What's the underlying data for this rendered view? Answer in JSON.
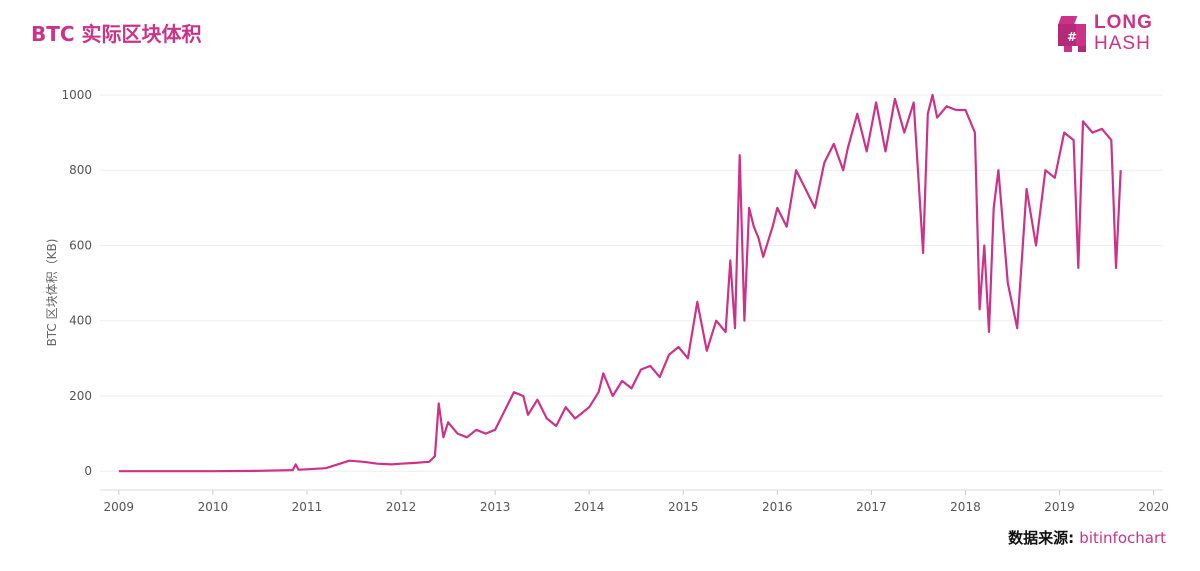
{
  "header": {
    "title": "BTC 实际区块体积"
  },
  "logo": {
    "line1": "LONG",
    "line2": "HASH"
  },
  "footer": {
    "source_label": "数据来源:",
    "source_value": "bitinfochart"
  },
  "colors": {
    "series": "#cc3388",
    "grid": "#eeeeee",
    "axis_text": "#555555"
  },
  "chart_data": {
    "type": "line",
    "title": "BTC 实际区块体积",
    "xlabel": "",
    "ylabel": "BTC 区块体积（KB)",
    "xlim": [
      2008.8,
      2020.1
    ],
    "ylim": [
      -50,
      1000
    ],
    "x_ticks": [
      "2009",
      "2010",
      "2011",
      "2012",
      "2013",
      "2014",
      "2015",
      "2016",
      "2017",
      "2018",
      "2019",
      "2020"
    ],
    "y_ticks": [
      "0",
      "200",
      "400",
      "600",
      "800",
      "1000"
    ],
    "grid": true,
    "legend": "none",
    "series": [
      {
        "name": "BTC 区块体积",
        "x": [
          2009.0,
          2009.5,
          2010.0,
          2010.5,
          2010.85,
          2010.88,
          2010.91,
          2011.0,
          2011.2,
          2011.35,
          2011.45,
          2011.6,
          2011.75,
          2011.9,
          2012.0,
          2012.15,
          2012.3,
          2012.36,
          2012.4,
          2012.45,
          2012.5,
          2012.6,
          2012.7,
          2012.8,
          2012.9,
          2013.0,
          2013.1,
          2013.2,
          2013.3,
          2013.35,
          2013.45,
          2013.55,
          2013.65,
          2013.75,
          2013.85,
          2013.95,
          2014.0,
          2014.1,
          2014.15,
          2014.25,
          2014.35,
          2014.45,
          2014.55,
          2014.65,
          2014.75,
          2014.85,
          2014.95,
          2015.05,
          2015.15,
          2015.25,
          2015.35,
          2015.45,
          2015.5,
          2015.55,
          2015.6,
          2015.65,
          2015.7,
          2015.75,
          2015.8,
          2015.85,
          2015.95,
          2016.0,
          2016.1,
          2016.2,
          2016.3,
          2016.4,
          2016.5,
          2016.6,
          2016.7,
          2016.75,
          2016.85,
          2016.95,
          2017.05,
          2017.15,
          2017.25,
          2017.35,
          2017.45,
          2017.55,
          2017.6,
          2017.65,
          2017.7,
          2017.8,
          2017.9,
          2018.0,
          2018.1,
          2018.15,
          2018.2,
          2018.25,
          2018.3,
          2018.35,
          2018.45,
          2018.55,
          2018.65,
          2018.75,
          2018.85,
          2018.95,
          2019.05,
          2019.15,
          2019.2,
          2019.25,
          2019.35,
          2019.45,
          2019.55,
          2019.6,
          2019.65
        ],
        "values": [
          0,
          0,
          0,
          1,
          3,
          18,
          4,
          5,
          8,
          20,
          28,
          25,
          20,
          18,
          20,
          22,
          25,
          40,
          180,
          90,
          130,
          100,
          90,
          110,
          100,
          110,
          160,
          210,
          200,
          150,
          190,
          140,
          120,
          170,
          140,
          160,
          170,
          210,
          260,
          200,
          240,
          220,
          270,
          280,
          250,
          310,
          330,
          300,
          450,
          320,
          400,
          370,
          560,
          380,
          840,
          400,
          700,
          650,
          620,
          570,
          650,
          700,
          650,
          800,
          750,
          700,
          820,
          870,
          800,
          860,
          950,
          850,
          980,
          850,
          990,
          900,
          980,
          580,
          950,
          1000,
          940,
          970,
          960,
          960,
          900,
          430,
          600,
          370,
          700,
          800,
          500,
          380,
          750,
          600,
          800,
          780,
          900,
          880,
          540,
          930,
          900,
          910,
          880,
          540,
          800
        ]
      }
    ]
  }
}
